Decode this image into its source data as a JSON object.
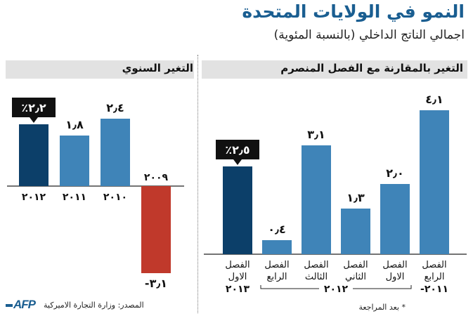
{
  "header": {
    "title": "النمو في الولايات المتحدة",
    "subtitle": "اجمالي الناتج الداخلي (بالنسبة المئوية)"
  },
  "footer": {
    "source": "المصدر: وزارة التجارة الاميركية",
    "footnote": "* بعد المراجعة",
    "logo": "AFP"
  },
  "colors": {
    "highlight": "#0c3f69",
    "bar": "#3f84b8",
    "negative": "#c0392b",
    "title": "#1a5e91"
  },
  "chart_data": [
    {
      "type": "bar",
      "title": "التغير السنوي",
      "categories": [
        "2012",
        "2011",
        "2010",
        "2009"
      ],
      "category_labels": [
        "٢٠١٢",
        "٢٠١١",
        "٢٠١٠",
        "٢٠٠٩"
      ],
      "values": [
        2.2,
        1.8,
        2.4,
        -3.1
      ],
      "value_labels": [
        "٪٢٫٢",
        "١٫٨",
        "٢٫٤",
        "-٣٫١"
      ],
      "highlight_index": 0
    },
    {
      "type": "bar",
      "title": "التغير بالمقارنة مع الفصل المنصرم",
      "categories": [
        "Q1 2013",
        "Q4 2012",
        "Q3 2012",
        "Q2 2012",
        "Q1 2012",
        "Q4 2011"
      ],
      "category_labels": [
        [
          "الفصل",
          "الاول"
        ],
        [
          "الفصل",
          "الرابع"
        ],
        [
          "الفصل",
          "الثالث"
        ],
        [
          "الفصل",
          "الثاني"
        ],
        [
          "الفصل",
          "الاول"
        ],
        [
          "الفصل",
          "الرابع"
        ]
      ],
      "values": [
        2.5,
        0.4,
        3.1,
        1.3,
        2.0,
        4.1
      ],
      "value_labels": [
        "٪٢٫٥",
        "٠٫٤",
        "٣٫١",
        "١٫٣",
        "٢٫٠",
        "٤٫١"
      ],
      "highlight_index": 0,
      "year_groups": [
        {
          "label": "٢٠١٣",
          "span": [
            0,
            0
          ]
        },
        {
          "label": "٢٠١٢",
          "span": [
            1,
            4
          ]
        },
        {
          "label": "-٢٠١١",
          "span": [
            5,
            5
          ]
        }
      ]
    }
  ]
}
